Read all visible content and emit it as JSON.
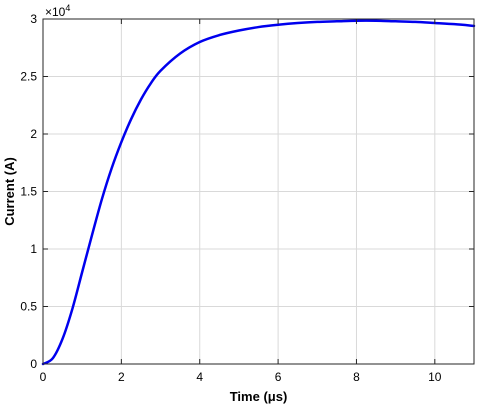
{
  "chart_data": {
    "type": "line",
    "xlabel": "Time (μs)",
    "ylabel": "Current (A)",
    "y_multiplier": {
      "base": "×10",
      "exponent": "4"
    },
    "xlim": [
      0,
      11
    ],
    "ylim": [
      0,
      3
    ],
    "xticks": [
      0,
      2,
      4,
      6,
      8,
      10
    ],
    "yticks": [
      0,
      0.5,
      1,
      1.5,
      2,
      2.5,
      3
    ],
    "xtick_labels": [
      "0",
      "2",
      "4",
      "6",
      "8",
      "10"
    ],
    "ytick_labels": [
      "0",
      "0.5",
      "1",
      "1.5",
      "2",
      "2.5",
      "3"
    ],
    "grid": true,
    "legend": "none",
    "series": [
      {
        "color": "#0000ee",
        "x": [
          0,
          0.25,
          0.5,
          0.75,
          1,
          1.25,
          1.5,
          1.75,
          2,
          2.25,
          2.5,
          2.75,
          3,
          3.5,
          4,
          4.5,
          5,
          5.5,
          6,
          6.5,
          7,
          7.5,
          8,
          8.5,
          9,
          9.5,
          10,
          10.5,
          11
        ],
        "y": [
          0,
          0.05,
          0.22,
          0.48,
          0.8,
          1.12,
          1.43,
          1.7,
          1.93,
          2.13,
          2.3,
          2.44,
          2.55,
          2.7,
          2.8,
          2.86,
          2.9,
          2.93,
          2.95,
          2.965,
          2.975,
          2.98,
          2.985,
          2.985,
          2.98,
          2.975,
          2.965,
          2.955,
          2.94
        ]
      }
    ]
  }
}
